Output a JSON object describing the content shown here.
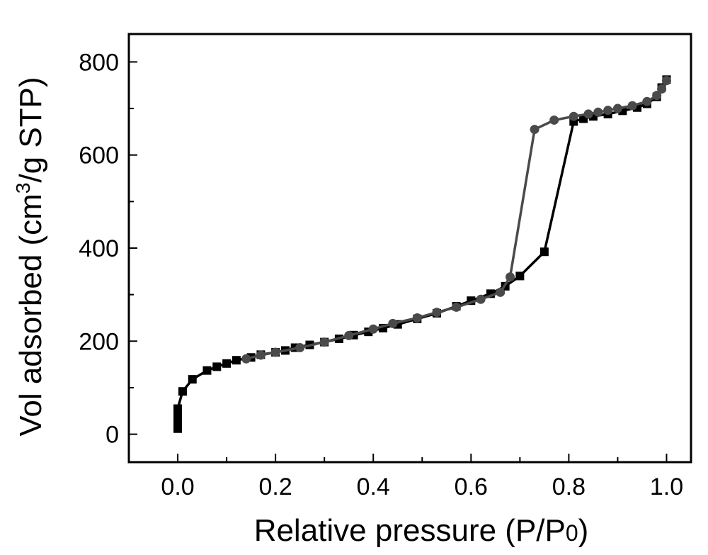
{
  "chart_data": {
    "type": "line",
    "xlabel": "Relative pressure (P/P0)",
    "ylabel": "Vol adsorbed (cm3/g STP)",
    "xlim": [
      -0.1,
      1.05
    ],
    "ylim": [
      -60,
      860
    ],
    "x_ticks": [
      0.0,
      0.2,
      0.4,
      0.6,
      0.8,
      1.0
    ],
    "x_tick_labels": [
      "0.0",
      "0.2",
      "0.4",
      "0.6",
      "0.8",
      "1.0"
    ],
    "y_ticks": [
      0,
      200,
      400,
      600,
      800
    ],
    "y_tick_labels": [
      "0",
      "200",
      "400",
      "600",
      "800"
    ],
    "grid": false,
    "series": [
      {
        "marker": "square",
        "color": "#000000",
        "points": [
          [
            0.0,
            12
          ],
          [
            0.0,
            20
          ],
          [
            0.0,
            30
          ],
          [
            0.0,
            45
          ],
          [
            0.0,
            55
          ],
          [
            0.01,
            92
          ],
          [
            0.03,
            118
          ],
          [
            0.06,
            137
          ],
          [
            0.08,
            145
          ],
          [
            0.1,
            152
          ],
          [
            0.12,
            159
          ],
          [
            0.15,
            165
          ],
          [
            0.17,
            171
          ],
          [
            0.2,
            176
          ],
          [
            0.22,
            180
          ],
          [
            0.24,
            186
          ],
          [
            0.27,
            192
          ],
          [
            0.3,
            198
          ],
          [
            0.33,
            205
          ],
          [
            0.36,
            213
          ],
          [
            0.39,
            220
          ],
          [
            0.42,
            228
          ],
          [
            0.45,
            236
          ],
          [
            0.49,
            248
          ],
          [
            0.53,
            260
          ],
          [
            0.57,
            275
          ],
          [
            0.6,
            287
          ],
          [
            0.64,
            302
          ],
          [
            0.67,
            318
          ],
          [
            0.7,
            340
          ],
          [
            0.75,
            392
          ],
          [
            0.81,
            672
          ],
          [
            0.83,
            678
          ],
          [
            0.85,
            683
          ],
          [
            0.88,
            688
          ],
          [
            0.91,
            695
          ],
          [
            0.94,
            702
          ],
          [
            0.96,
            710
          ],
          [
            0.98,
            725
          ],
          [
            0.99,
            745
          ],
          [
            1.0,
            762
          ]
        ]
      },
      {
        "marker": "circle",
        "color": "#4a4a4a",
        "points": [
          [
            1.0,
            760
          ],
          [
            0.99,
            742
          ],
          [
            0.98,
            728
          ],
          [
            0.96,
            715
          ],
          [
            0.93,
            706
          ],
          [
            0.9,
            700
          ],
          [
            0.88,
            696
          ],
          [
            0.86,
            692
          ],
          [
            0.84,
            688
          ],
          [
            0.81,
            683
          ],
          [
            0.77,
            675
          ],
          [
            0.73,
            655
          ],
          [
            0.68,
            338
          ],
          [
            0.66,
            305
          ],
          [
            0.62,
            290
          ],
          [
            0.57,
            273
          ],
          [
            0.53,
            262
          ],
          [
            0.49,
            250
          ],
          [
            0.44,
            238
          ],
          [
            0.4,
            226
          ],
          [
            0.35,
            212
          ],
          [
            0.3,
            198
          ],
          [
            0.25,
            186
          ],
          [
            0.2,
            176
          ],
          [
            0.17,
            170
          ],
          [
            0.14,
            162
          ]
        ]
      }
    ]
  }
}
